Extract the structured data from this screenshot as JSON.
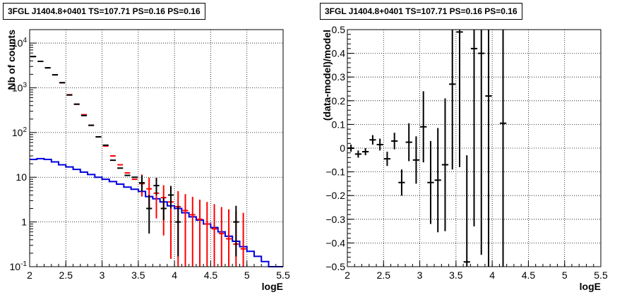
{
  "chart_data": [
    {
      "type": "histogram",
      "title": "3FGL J1404.8+0401 TS=107.71 PS=0.16 PS=0.16",
      "xlabel": "logE",
      "ylabel": "Nb of counts",
      "xlim": [
        2,
        5.5
      ],
      "ylim": [
        0.1,
        20000
      ],
      "yscale": "log",
      "grid": true,
      "x_ticks": [
        "2",
        "2.5",
        "3",
        "3.5",
        "4",
        "4.5",
        "5",
        "5.5"
      ],
      "y_ticks": [
        {
          "value": 0.1,
          "label": "10",
          "sup": "-1"
        },
        {
          "value": 1,
          "label": "1",
          "sup": ""
        },
        {
          "value": 10,
          "label": "10",
          "sup": ""
        },
        {
          "value": 100,
          "label": "10",
          "sup": "2"
        },
        {
          "value": 1000,
          "label": "10",
          "sup": "3"
        },
        {
          "value": 10000,
          "label": "10",
          "sup": "4"
        }
      ],
      "bins": {
        "start": 2.0,
        "width": 0.1
      },
      "series": [
        {
          "role": "model-total",
          "color": "#ff0000",
          "style": "markers",
          "values": [
            5000,
            3900,
            2800,
            1950,
            1300,
            700,
            430,
            250,
            145,
            80,
            50,
            30,
            19,
            12.5,
            9,
            7.2,
            5.5,
            4.4,
            3.5,
            2.8,
            2.2,
            1.8,
            1.45,
            1.15,
            0.9,
            0.7,
            0.55,
            0.42,
            0.32,
            0.25
          ],
          "errors_low": [
            0,
            0,
            0,
            0,
            0,
            0,
            0,
            0,
            0,
            0,
            0,
            0,
            0,
            0,
            0,
            3.5,
            3.5,
            3.2,
            3.0,
            2.65,
            2.1,
            1.72,
            1.39,
            1.11,
            0.87,
            0.68,
            0.54,
            0.41,
            0.31,
            0.245
          ],
          "errors_high": [
            0,
            0,
            0,
            0,
            0,
            0,
            0,
            0,
            0,
            0,
            0,
            0,
            0,
            0,
            0,
            4.3,
            4.3,
            3.6,
            3.1,
            2.9,
            2.7,
            2.4,
            2.2,
            2.0,
            1.9,
            1.8,
            1.6,
            1.5,
            1.4,
            1.35
          ]
        },
        {
          "role": "data",
          "color": "#000000",
          "style": "markers",
          "values": [
            5000,
            3900,
            2800,
            1950,
            1300,
            690,
            430,
            240,
            145,
            80,
            52,
            24,
            16,
            11,
            10,
            7.5,
            2,
            6.5,
            2,
            4,
            1,
            null,
            null,
            null,
            null,
            null,
            null,
            null,
            1,
            null
          ],
          "errors_low": [
            0,
            0,
            0,
            0,
            0,
            0,
            0,
            0,
            0,
            0,
            0,
            0,
            0,
            0,
            0,
            2.7,
            1.45,
            2.5,
            0.9,
            2.0,
            0.83,
            0,
            0,
            0,
            0,
            0,
            0,
            0,
            0.83,
            0
          ],
          "errors_high": [
            0,
            0,
            0,
            0,
            0,
            0,
            0,
            0,
            0,
            0,
            0,
            0,
            0,
            0,
            0,
            3.5,
            2.0,
            3.2,
            1.5,
            2.4,
            1.3,
            0,
            0,
            0,
            0,
            0,
            0,
            0,
            1.3,
            0
          ]
        },
        {
          "role": "source-model",
          "color": "#0000dd",
          "style": "step",
          "values": [
            25,
            26,
            25,
            22,
            19,
            17,
            15,
            13,
            11.5,
            10,
            9,
            8,
            7,
            6,
            5.4,
            4.8,
            3.7,
            3.3,
            2.8,
            2.3,
            2.0,
            1.6,
            1.3,
            1.1,
            0.9,
            0.75,
            0.6,
            0.48,
            0.37,
            0.28,
            0.22,
            0.17,
            0.13,
            0.1,
            0.1
          ]
        }
      ]
    },
    {
      "type": "scatter",
      "title": "3FGL J1404.8+0401 TS=107.71 PS=0.16 PS=0.16",
      "xlabel": "logE",
      "ylabel": "(data-model)/model",
      "xlim": [
        2,
        5.5
      ],
      "ylim": [
        -0.5,
        0.5
      ],
      "grid": true,
      "x_ticks": [
        "2",
        "2.5",
        "3",
        "3.5",
        "4",
        "4.5",
        "5",
        "5.5"
      ],
      "y_ticks": [
        "−0.5",
        "−0.4",
        "−0.3",
        "−0.2",
        "−0.1",
        "0",
        "0.1",
        "0.2",
        "0.3",
        "0.4",
        "0.5"
      ],
      "points": [
        {
          "x": 2.05,
          "y": 0.0,
          "err": 0.015
        },
        {
          "x": 2.15,
          "y": -0.025,
          "err": 0.015
        },
        {
          "x": 2.25,
          "y": -0.015,
          "err": 0.015
        },
        {
          "x": 2.35,
          "y": 0.035,
          "err": 0.02
        },
        {
          "x": 2.45,
          "y": 0.015,
          "err": 0.025
        },
        {
          "x": 2.55,
          "y": -0.045,
          "err": 0.03
        },
        {
          "x": 2.65,
          "y": 0.03,
          "err": 0.035
        },
        {
          "x": 2.75,
          "y": -0.145,
          "err": 0.055
        },
        {
          "x": 2.85,
          "y": 0.025,
          "err": 0.08
        },
        {
          "x": 2.95,
          "y": -0.05,
          "err": 0.1
        },
        {
          "x": 3.05,
          "y": 0.09,
          "err": 0.15
        },
        {
          "x": 3.15,
          "y": -0.145,
          "err": 0.175
        },
        {
          "x": 3.25,
          "y": -0.135,
          "err": 0.22
        },
        {
          "x": 3.35,
          "y": -0.07,
          "err": 0.28
        },
        {
          "x": 3.45,
          "y": 0.27,
          "err": 0.36
        },
        {
          "x": 3.55,
          "y": 0.49,
          "err": 0.57
        },
        {
          "x": 3.65,
          "y": -0.48,
          "err": 0.45
        },
        {
          "x": 3.75,
          "y": 0.42,
          "err": 0.75
        },
        {
          "x": 3.85,
          "y": 0.4,
          "err": 0.85
        },
        {
          "x": 3.95,
          "y": 0.22,
          "err": 0.95
        },
        {
          "x": 4.15,
          "y": 0.105,
          "err": 1.2
        }
      ]
    }
  ],
  "panels": [
    {
      "title": "3FGL J1404.8+0401 TS=107.71 PS=0.16 PS=0.16"
    },
    {
      "title": "3FGL J1404.8+0401 TS=107.71 PS=0.16 PS=0.16"
    }
  ]
}
